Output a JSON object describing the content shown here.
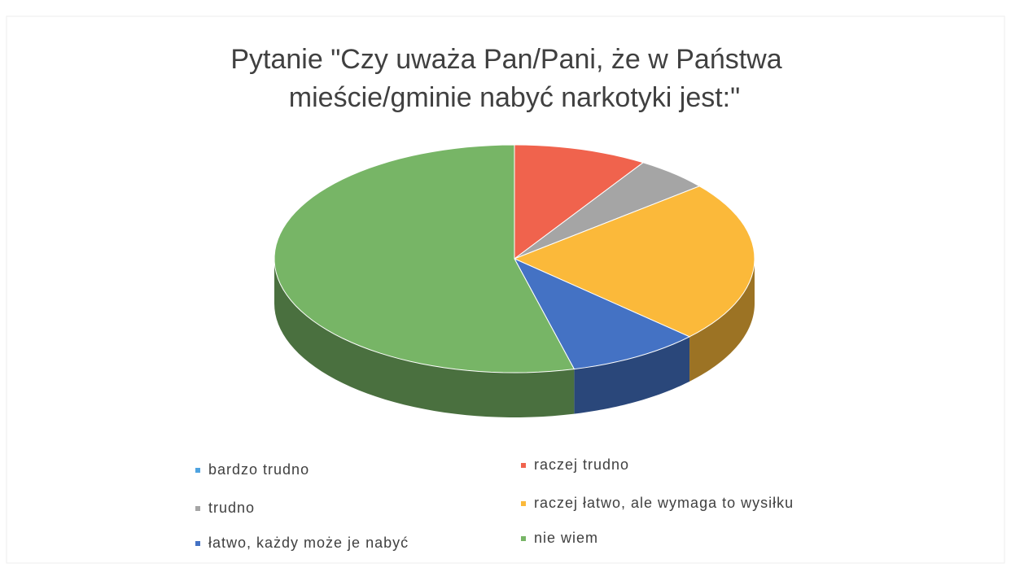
{
  "chart_data": {
    "type": "pie3d",
    "title": [
      "Pytanie \"Czy uważa Pan/Pani, że w Państwa",
      "mieście/gminie nabyć narkotyki jest:\""
    ],
    "categories": [
      "bardzo trudno",
      "raczej trudno",
      "trudno",
      "raczej łatwo, ale wymaga to wysiłku",
      "łatwo, każdy może je nabyć",
      "nie wiem"
    ],
    "values": [
      0,
      9,
      5,
      23,
      9,
      54
    ],
    "colors": [
      "#4fa3e0",
      "#f0634d",
      "#a5a5a5",
      "#fbb93a",
      "#4472c4",
      "#77b566"
    ]
  }
}
